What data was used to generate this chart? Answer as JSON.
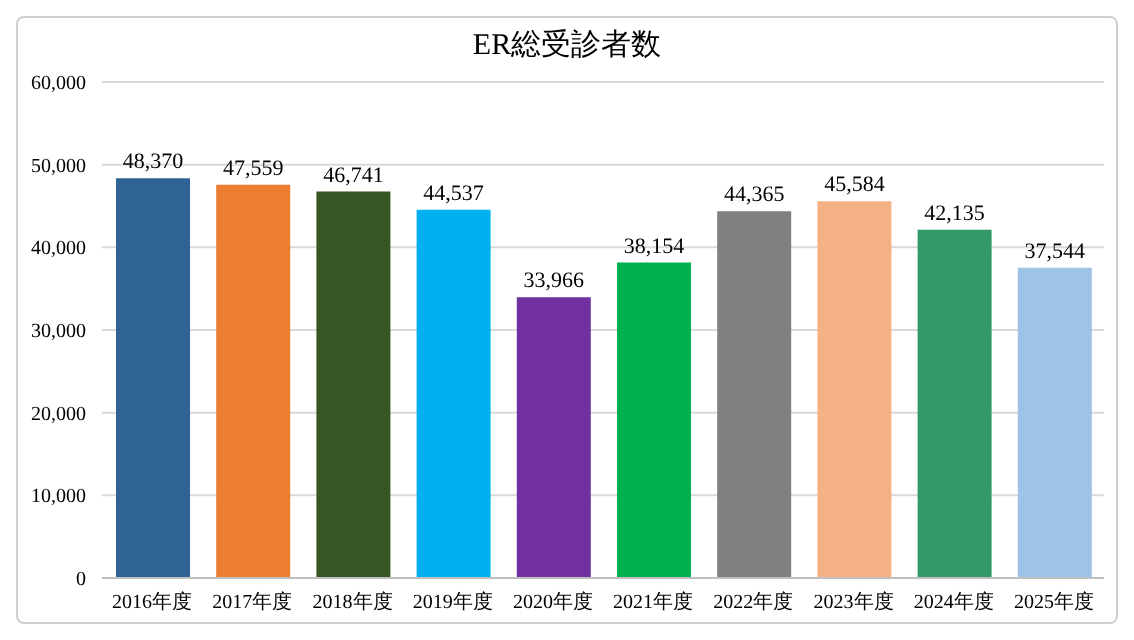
{
  "chart_data": {
    "type": "bar",
    "title": "ER総受診者数",
    "categories": [
      "2016年度",
      "2017年度",
      "2018年度",
      "2019年度",
      "2020年度",
      "2021年度",
      "2022年度",
      "2023年度",
      "2024年度",
      "2025年度"
    ],
    "values": [
      48370,
      47559,
      46741,
      44537,
      33966,
      38154,
      44365,
      45584,
      42135,
      37544
    ],
    "colors": [
      "#2f6396",
      "#ed7d31",
      "#375623",
      "#00b0f0",
      "#7030a0",
      "#00b050",
      "#808080",
      "#f4b183",
      "#339966",
      "#9dc3e6"
    ],
    "ylim": [
      0,
      60000
    ],
    "yticks": [
      {
        "value": 0,
        "label": "0"
      },
      {
        "value": 10000,
        "label": "10,000"
      },
      {
        "value": 20000,
        "label": "20,000"
      },
      {
        "value": 30000,
        "label": "30,000"
      },
      {
        "value": 40000,
        "label": "40,000"
      },
      {
        "value": 50000,
        "label": "50,000"
      },
      {
        "value": 60000,
        "label": "60,000"
      }
    ],
    "value_labels": [
      "48,370",
      "47,559",
      "46,741",
      "44,537",
      "33,966",
      "38,154",
      "44,365",
      "45,584",
      "42,135",
      "37,544"
    ],
    "grid": "y"
  }
}
